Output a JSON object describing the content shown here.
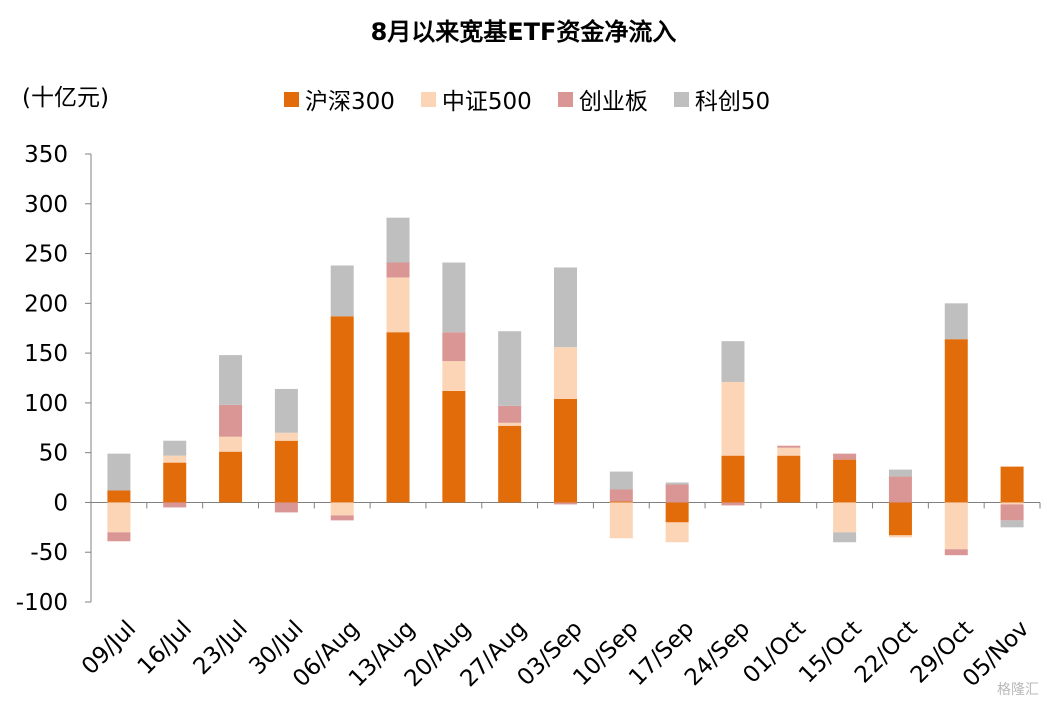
{
  "chart_data": {
    "type": "bar",
    "stacked": true,
    "title": "8月以来宽基ETF资金净流入",
    "unit_label": "(十亿元)",
    "ylim": [
      -100,
      350
    ],
    "yticks": [
      "350",
      "300",
      "250",
      "200",
      "150",
      "100",
      "50",
      "0",
      "-50",
      "-100"
    ],
    "grid": false,
    "legend_position": "top",
    "categories": [
      "09/Jul",
      "16/Jul",
      "23/Jul",
      "30/Jul",
      "06/Aug",
      "13/Aug",
      "20/Aug",
      "27/Aug",
      "03/Sep",
      "10/Sep",
      "17/Sep",
      "24/Sep",
      "01/Oct",
      "15/Oct",
      "22/Oct",
      "29/Oct",
      "05/Nov"
    ],
    "series": [
      {
        "name": "沪深300",
        "color": "#E36C0A",
        "values": [
          12,
          40,
          51,
          62,
          187,
          171,
          112,
          77,
          104,
          1,
          -20,
          47,
          47,
          43,
          -33,
          164,
          36
        ]
      },
      {
        "name": "中证500",
        "color": "#FBD5B5",
        "values": [
          -30,
          7,
          15,
          8,
          -13,
          55,
          30,
          3,
          52,
          -36,
          -20,
          74,
          8,
          -30,
          -2,
          -47,
          -2
        ]
      },
      {
        "name": "创业板",
        "color": "#DA9694",
        "values": [
          -9,
          -5,
          32,
          -10,
          -5,
          15,
          29,
          17,
          -2,
          12,
          18,
          -3,
          2,
          6,
          26,
          -6,
          -16
        ]
      },
      {
        "name": "科创50",
        "color": "#BFBFBF",
        "values": [
          37,
          15,
          50,
          44,
          51,
          45,
          70,
          75,
          80,
          18,
          2,
          41,
          0,
          -10,
          7,
          36,
          -7
        ]
      }
    ]
  },
  "watermark": "格隆汇"
}
